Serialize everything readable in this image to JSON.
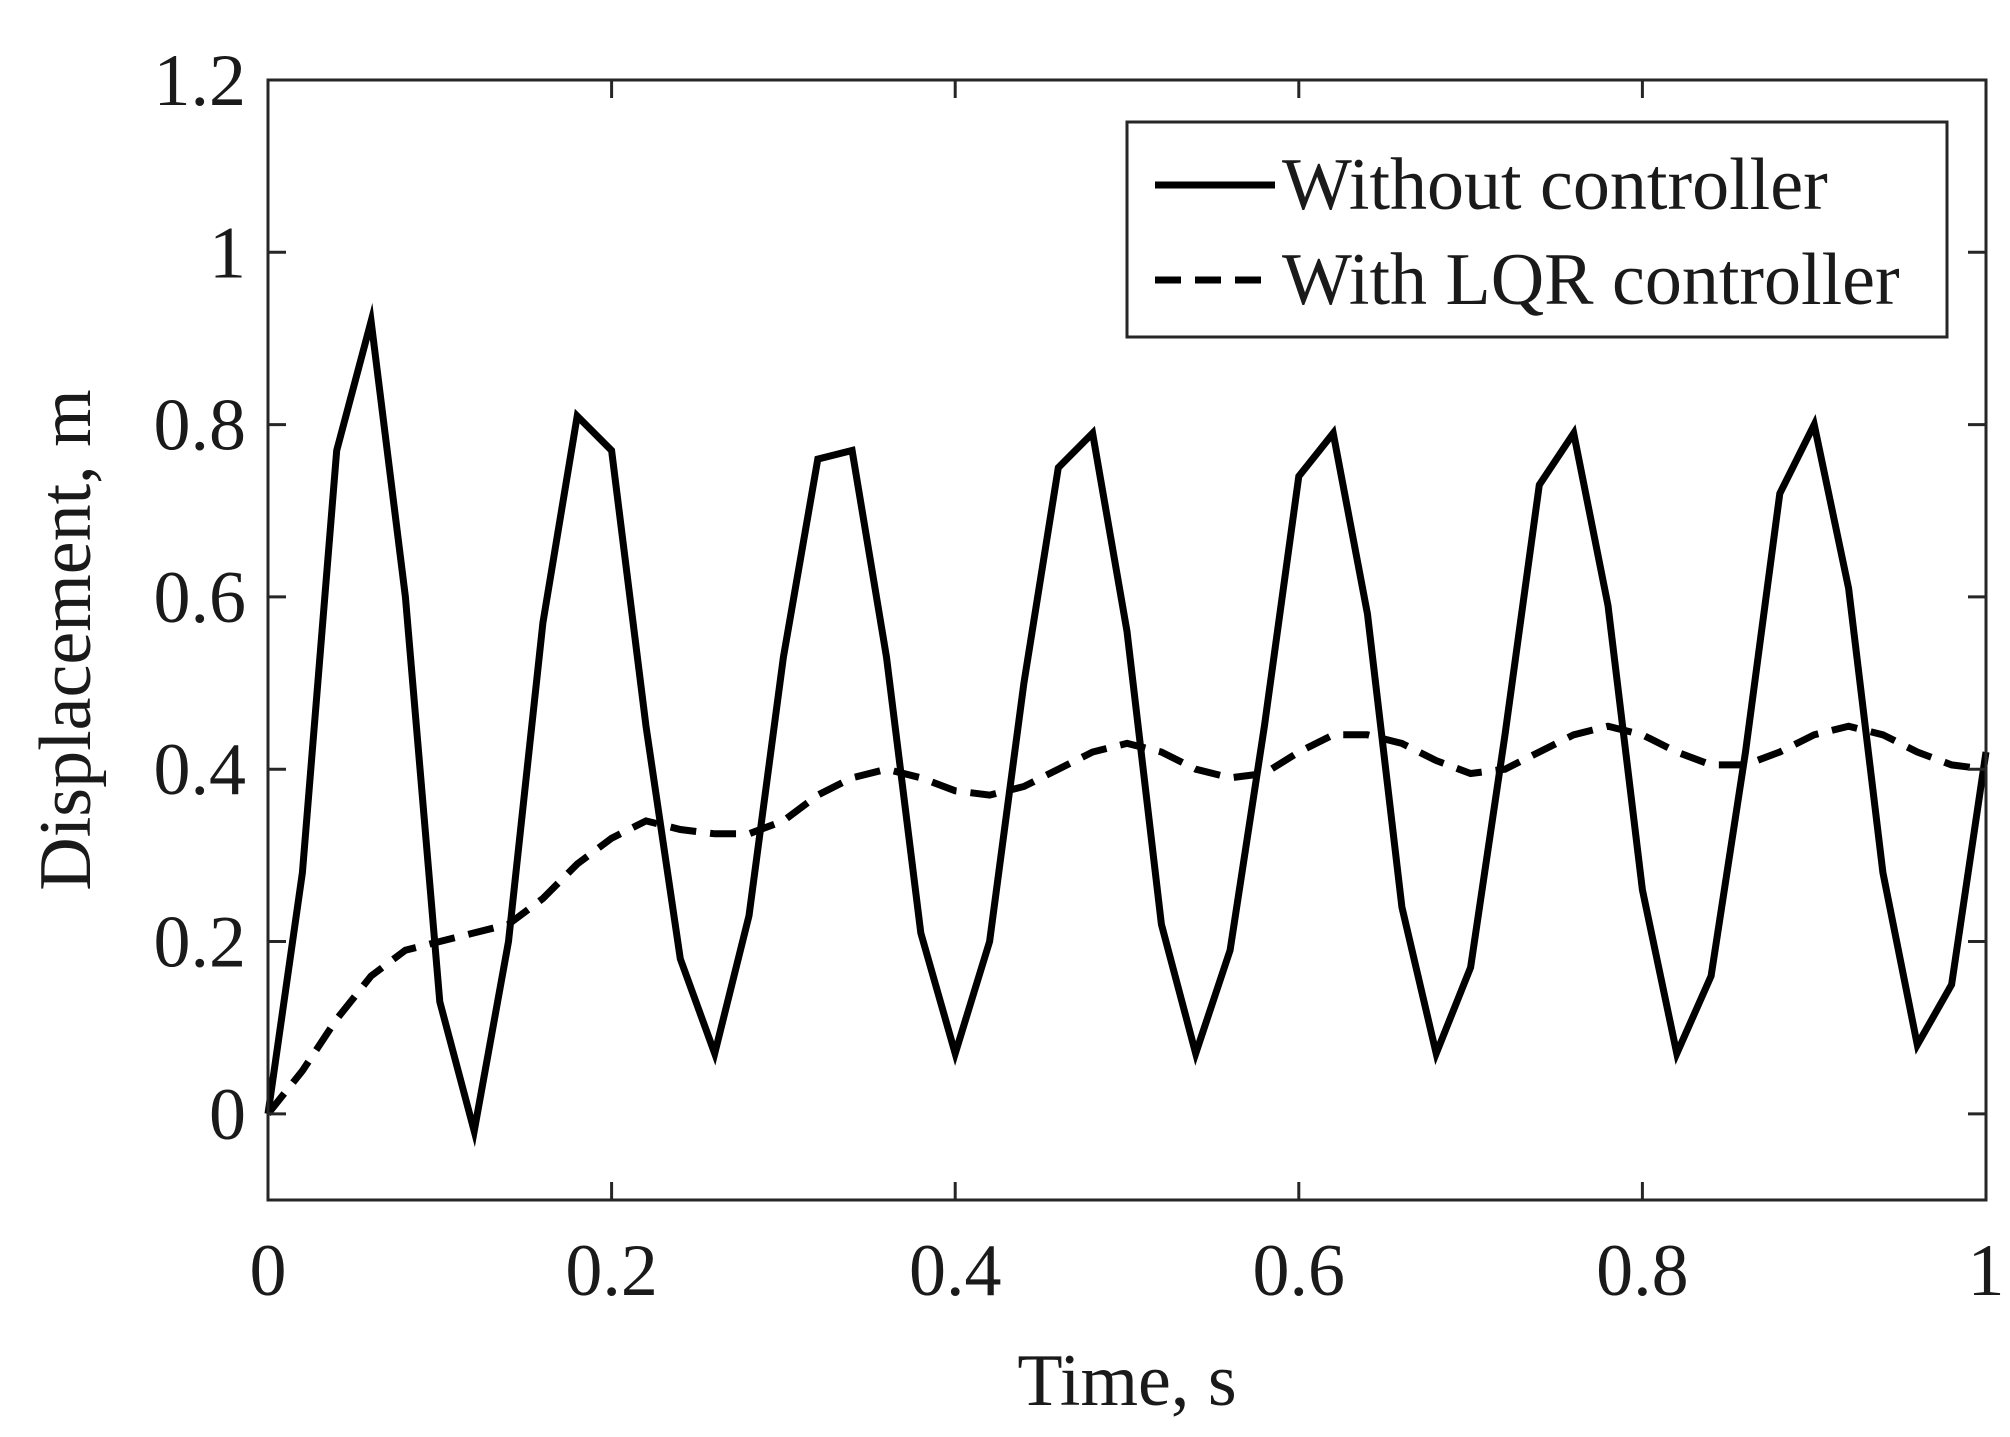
{
  "chart_data": {
    "type": "line",
    "title": "",
    "xlabel": "Time, s",
    "ylabel": "Displacement, m",
    "xlim": [
      0,
      1
    ],
    "ylim": [
      -0.1,
      1.2
    ],
    "xticks": [
      0,
      0.2,
      0.4,
      0.6,
      0.8,
      1
    ],
    "xtick_labels": [
      "0",
      "0.2",
      "0.4",
      "0.6",
      "0.8",
      "1"
    ],
    "yticks": [
      0,
      0.2,
      0.4,
      0.6,
      0.8,
      1,
      1.2
    ],
    "ytick_labels": [
      "0",
      "0.2",
      "0.4",
      "0.6",
      "0.8",
      "1",
      "1.2"
    ],
    "grid": false,
    "legend_position": "top-right",
    "series": [
      {
        "name": "Without controller",
        "style": "solid",
        "color": "#000000",
        "x": [
          0,
          0.02,
          0.04,
          0.06,
          0.08,
          0.1,
          0.12,
          0.14,
          0.16,
          0.18,
          0.2,
          0.22,
          0.24,
          0.26,
          0.28,
          0.3,
          0.32,
          0.34,
          0.36,
          0.38,
          0.4,
          0.42,
          0.44,
          0.46,
          0.48,
          0.5,
          0.52,
          0.54,
          0.56,
          0.58,
          0.6,
          0.62,
          0.64,
          0.66,
          0.68,
          0.7,
          0.72,
          0.74,
          0.76,
          0.78,
          0.8,
          0.82,
          0.84,
          0.86,
          0.88,
          0.9,
          0.92,
          0.94,
          0.96,
          0.98,
          1.0
        ],
        "y": [
          0.0,
          0.28,
          0.77,
          0.92,
          0.6,
          0.13,
          -0.02,
          0.2,
          0.57,
          0.81,
          0.77,
          0.45,
          0.18,
          0.07,
          0.23,
          0.53,
          0.76,
          0.77,
          0.53,
          0.21,
          0.07,
          0.2,
          0.5,
          0.75,
          0.79,
          0.56,
          0.22,
          0.07,
          0.19,
          0.45,
          0.74,
          0.79,
          0.58,
          0.24,
          0.07,
          0.17,
          0.44,
          0.73,
          0.79,
          0.59,
          0.26,
          0.07,
          0.16,
          0.42,
          0.72,
          0.8,
          0.61,
          0.28,
          0.08,
          0.15,
          0.42
        ]
      },
      {
        "name": "With LQR controller",
        "style": "dashed",
        "color": "#000000",
        "x": [
          0,
          0.02,
          0.04,
          0.06,
          0.08,
          0.1,
          0.12,
          0.14,
          0.16,
          0.18,
          0.2,
          0.22,
          0.24,
          0.26,
          0.28,
          0.3,
          0.32,
          0.34,
          0.36,
          0.38,
          0.4,
          0.42,
          0.44,
          0.46,
          0.48,
          0.5,
          0.52,
          0.54,
          0.56,
          0.58,
          0.6,
          0.62,
          0.64,
          0.66,
          0.68,
          0.7,
          0.72,
          0.74,
          0.76,
          0.78,
          0.8,
          0.82,
          0.84,
          0.86,
          0.88,
          0.9,
          0.92,
          0.94,
          0.96,
          0.98,
          1.0
        ],
        "y": [
          0.0,
          0.05,
          0.11,
          0.16,
          0.19,
          0.2,
          0.21,
          0.22,
          0.25,
          0.29,
          0.32,
          0.34,
          0.33,
          0.325,
          0.325,
          0.34,
          0.37,
          0.39,
          0.4,
          0.39,
          0.375,
          0.37,
          0.38,
          0.4,
          0.42,
          0.43,
          0.42,
          0.4,
          0.39,
          0.395,
          0.42,
          0.44,
          0.44,
          0.43,
          0.41,
          0.395,
          0.4,
          0.42,
          0.44,
          0.45,
          0.44,
          0.42,
          0.405,
          0.405,
          0.42,
          0.44,
          0.45,
          0.44,
          0.42,
          0.405,
          0.4
        ]
      }
    ]
  }
}
